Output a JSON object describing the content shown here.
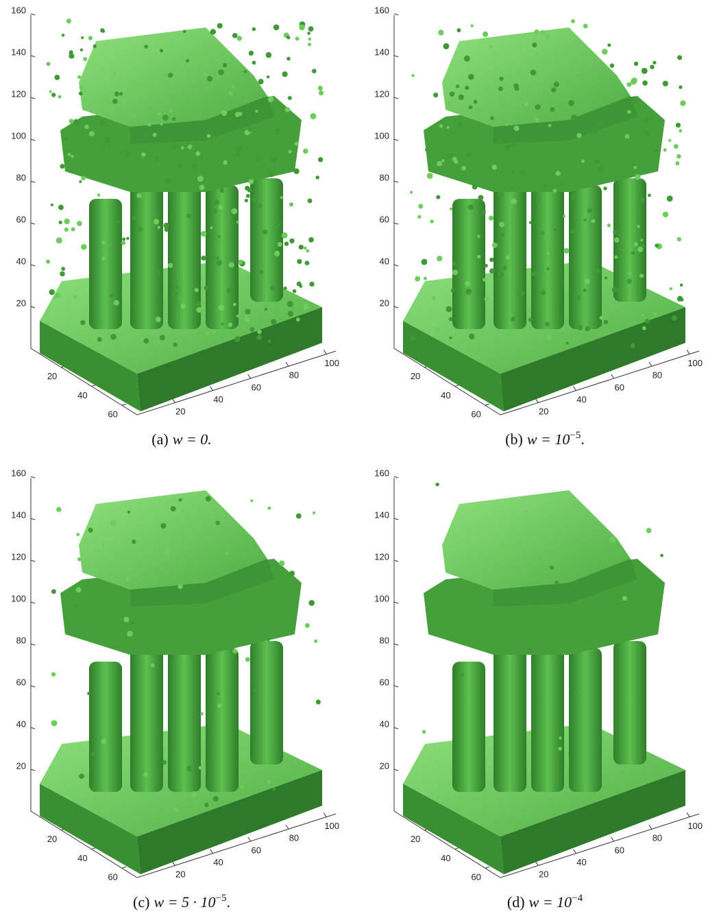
{
  "panels": [
    {
      "zticks": [
        20,
        40,
        60,
        80,
        100,
        120,
        140,
        160
      ],
      "xticks": [
        20,
        40,
        60
      ],
      "yticks": [
        20,
        40,
        60,
        80,
        100
      ],
      "caption": {
        "label": "(a)",
        "expr": "w = 0."
      }
    },
    {
      "zticks": [
        20,
        40,
        60,
        80,
        100,
        120,
        140,
        160
      ],
      "xticks": [
        20,
        40,
        60
      ],
      "yticks": [
        20,
        40,
        60,
        80,
        100
      ],
      "caption": {
        "label": "(b)",
        "expr": "w = 10",
        "exp": "−5",
        "end": "."
      }
    },
    {
      "zticks": [
        20,
        40,
        60,
        80,
        100,
        120,
        140,
        160
      ],
      "xticks": [
        20,
        40,
        60
      ],
      "yticks": [
        20,
        40,
        60,
        80,
        100
      ],
      "caption": {
        "label": "(c)",
        "expr": "w = 5 · 10",
        "exp": "−5",
        "end": "."
      }
    },
    {
      "zticks": [
        20,
        40,
        60,
        80,
        100,
        120,
        140,
        160
      ],
      "xticks": [
        20,
        40,
        60
      ],
      "yticks": [
        20,
        40,
        60,
        80,
        100
      ],
      "caption": {
        "label": "(d)",
        "expr": "w = 10",
        "exp": "−4"
      }
    }
  ]
}
